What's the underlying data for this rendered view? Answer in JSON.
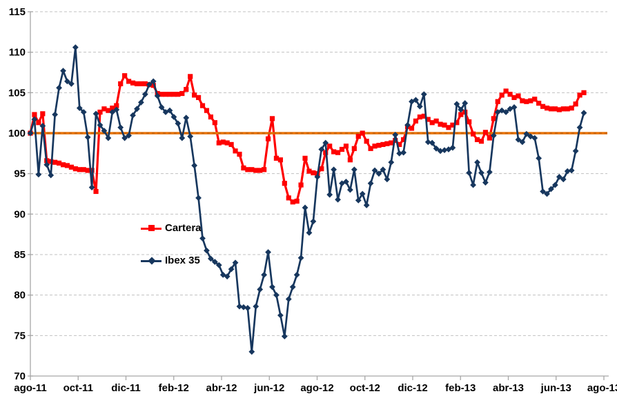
{
  "page": {
    "background": "#FFFFFF",
    "title": ""
  },
  "chart_data": {
    "type": "line",
    "title": "",
    "xlabel": "",
    "ylabel": "",
    "x_tick_labels": [
      "ago-11",
      "oct-11",
      "dic-11",
      "feb-12",
      "abr-12",
      "jun-12",
      "ago-12",
      "oct-12",
      "dic-12",
      "feb-13",
      "abr-13",
      "jun-13",
      "ago-13"
    ],
    "ylim": [
      70,
      115
    ],
    "y_ticks": [
      70,
      75,
      80,
      85,
      90,
      95,
      100,
      105,
      110,
      115
    ],
    "grid": "horizontal-dashed",
    "legend_position": "inside-left-middle",
    "axis_color": "#A6A6A6",
    "grid_color": "#C0C0C0",
    "text_color": "#000000",
    "reference_line": {
      "value": 100,
      "color": "#E8730A",
      "dash_color": "#B85C08"
    },
    "series": [
      {
        "name": "Cartera",
        "color": "#FE0000",
        "marker": "square",
        "line_width": 3.2,
        "values": [
          100.0,
          102.3,
          101.3,
          102.4,
          96.6,
          96.5,
          96.4,
          96.3,
          96.1,
          96.0,
          95.8,
          95.6,
          95.5,
          95.5,
          95.4,
          95.4,
          92.8,
          102.6,
          103.0,
          102.8,
          103.1,
          103.4,
          106.1,
          107.1,
          106.4,
          106.2,
          106.1,
          106.1,
          106.1,
          106.0,
          105.9,
          104.9,
          104.8,
          104.8,
          104.8,
          104.8,
          104.8,
          104.9,
          105.4,
          107.0,
          104.7,
          104.4,
          103.4,
          102.8,
          102.0,
          101.3,
          98.8,
          98.9,
          98.8,
          98.6,
          97.8,
          97.4,
          95.7,
          95.5,
          95.5,
          95.4,
          95.4,
          95.5,
          99.3,
          101.8,
          96.9,
          96.7,
          93.8,
          92.0,
          91.5,
          91.6,
          93.6,
          96.9,
          95.3,
          95.1,
          95.0,
          95.6,
          97.6,
          98.4,
          97.7,
          97.6,
          98.0,
          98.4,
          96.7,
          98.1,
          99.6,
          100.0,
          99.0,
          98.1,
          98.4,
          98.5,
          98.6,
          98.7,
          98.8,
          99.1,
          98.6,
          99.2,
          100.8,
          100.6,
          101.5,
          102.0,
          102.1,
          101.7,
          101.3,
          101.5,
          101.1,
          101.0,
          100.7,
          101.0,
          101.3,
          102.3,
          102.6,
          101.4,
          99.9,
          99.2,
          99.0,
          100.1,
          99.4,
          101.8,
          103.9,
          104.7,
          105.2,
          104.8,
          104.4,
          104.6,
          104.0,
          103.9,
          104.0,
          104.2,
          103.7,
          103.3,
          103.1,
          103.0,
          103.0,
          102.9,
          103.0,
          103.0,
          103.1,
          103.6,
          104.7,
          105.0
        ]
      },
      {
        "name": "Ibex 35",
        "color": "#17375E",
        "marker": "diamond",
        "line_width": 2.7,
        "values": [
          100.0,
          101.7,
          94.9,
          100.9,
          96.1,
          94.8,
          102.3,
          105.6,
          107.7,
          106.4,
          106.1,
          110.6,
          103.1,
          102.6,
          99.5,
          93.3,
          102.4,
          101.0,
          100.3,
          99.4,
          102.6,
          102.9,
          100.7,
          99.4,
          99.7,
          102.2,
          103.0,
          103.8,
          104.8,
          106.0,
          106.4,
          104.6,
          103.2,
          102.6,
          102.8,
          102.0,
          101.2,
          99.4,
          101.9,
          99.6,
          96.0,
          92.0,
          87.0,
          85.5,
          84.5,
          84.1,
          83.7,
          82.5,
          82.3,
          83.2,
          84.0,
          78.6,
          78.5,
          78.4,
          73.0,
          78.6,
          80.7,
          82.5,
          85.3,
          81.0,
          80.0,
          77.5,
          74.9,
          79.5,
          81.0,
          82.5,
          84.6,
          90.8,
          87.7,
          89.1,
          94.6,
          98.0,
          98.8,
          92.4,
          95.5,
          91.8,
          93.8,
          94.0,
          93.0,
          95.5,
          91.7,
          92.5,
          91.1,
          93.8,
          95.4,
          95.0,
          95.5,
          94.3,
          96.4,
          99.8,
          97.5,
          97.6,
          101.0,
          103.9,
          104.1,
          103.3,
          104.8,
          98.9,
          98.8,
          98.1,
          97.8,
          97.9,
          98.0,
          98.2,
          103.6,
          102.9,
          103.7,
          95.1,
          93.6,
          96.4,
          95.1,
          93.9,
          95.2,
          99.7,
          102.6,
          102.8,
          102.6,
          103.0,
          103.2,
          99.2,
          98.9,
          99.9,
          99.6,
          99.4,
          96.9,
          92.8,
          92.5,
          93.1,
          93.6,
          94.6,
          94.3,
          95.3,
          95.4,
          97.8,
          100.7,
          102.5
        ]
      }
    ]
  }
}
